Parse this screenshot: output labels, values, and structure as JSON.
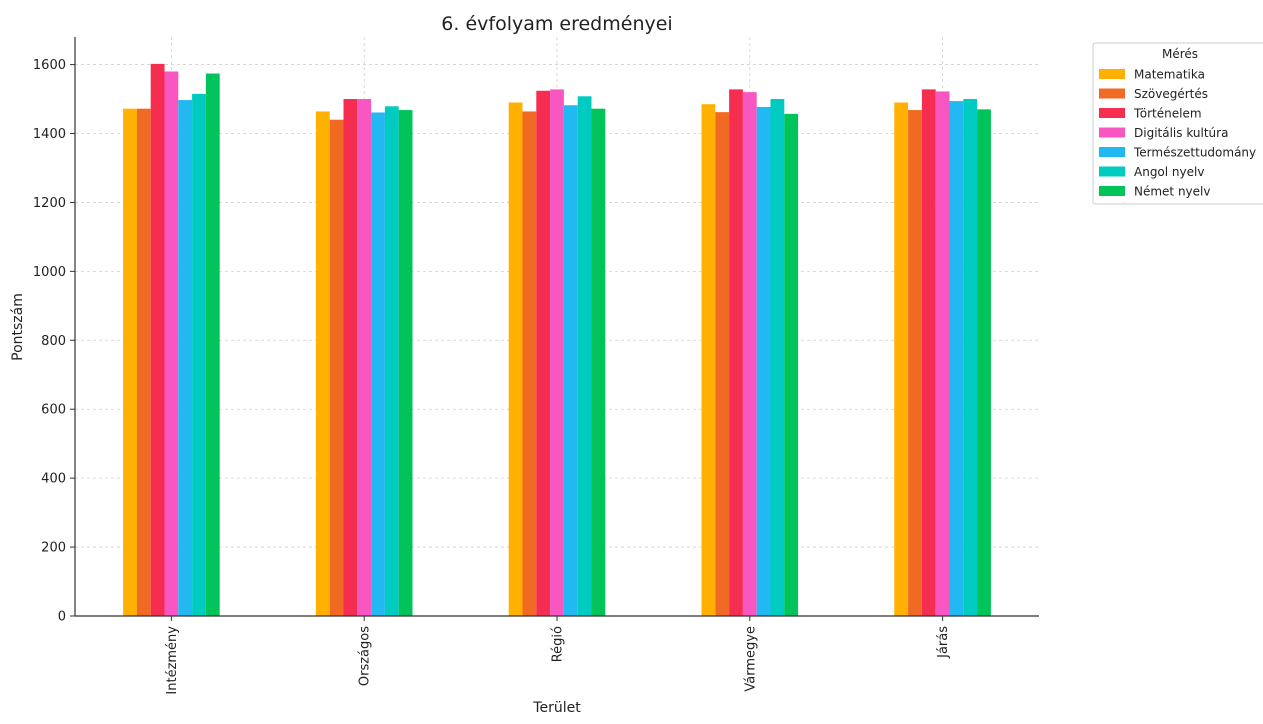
{
  "chart_data": {
    "type": "bar",
    "title": "6. évfolyam eredményei",
    "xlabel": "Terület",
    "ylabel": "Pontszám",
    "ylim": [
      0,
      1680
    ],
    "yticks": [
      0,
      200,
      400,
      600,
      800,
      1000,
      1200,
      1400,
      1600
    ],
    "grid": true,
    "legend_title": "Mérés",
    "legend_position": "top-right, outside plot",
    "categories": [
      "Intézmény",
      "Országos",
      "Régió",
      "Vármegye",
      "Járás"
    ],
    "series": [
      {
        "name": "Matematika",
        "color": "#ffb000",
        "values": [
          1472,
          1464,
          1490,
          1485,
          1490
        ]
      },
      {
        "name": "Szövegértés",
        "color": "#f06a23",
        "values": [
          1472,
          1440,
          1464,
          1462,
          1468
        ]
      },
      {
        "name": "Történelem",
        "color": "#f42d51",
        "values": [
          1602,
          1500,
          1524,
          1528,
          1528
        ]
      },
      {
        "name": "Digitális kultúra",
        "color": "#f857c2",
        "values": [
          1580,
          1500,
          1528,
          1520,
          1522
        ]
      },
      {
        "name": "Természettudomány",
        "color": "#22b8f2",
        "values": [
          1497,
          1461,
          1482,
          1477,
          1494
        ]
      },
      {
        "name": "Angol nyelv",
        "color": "#00cbc1",
        "values": [
          1515,
          1479,
          1508,
          1500,
          1500
        ]
      },
      {
        "name": "Német nyelv",
        "color": "#00c45a",
        "values": [
          1574,
          1468,
          1472,
          1457,
          1470
        ]
      }
    ]
  }
}
